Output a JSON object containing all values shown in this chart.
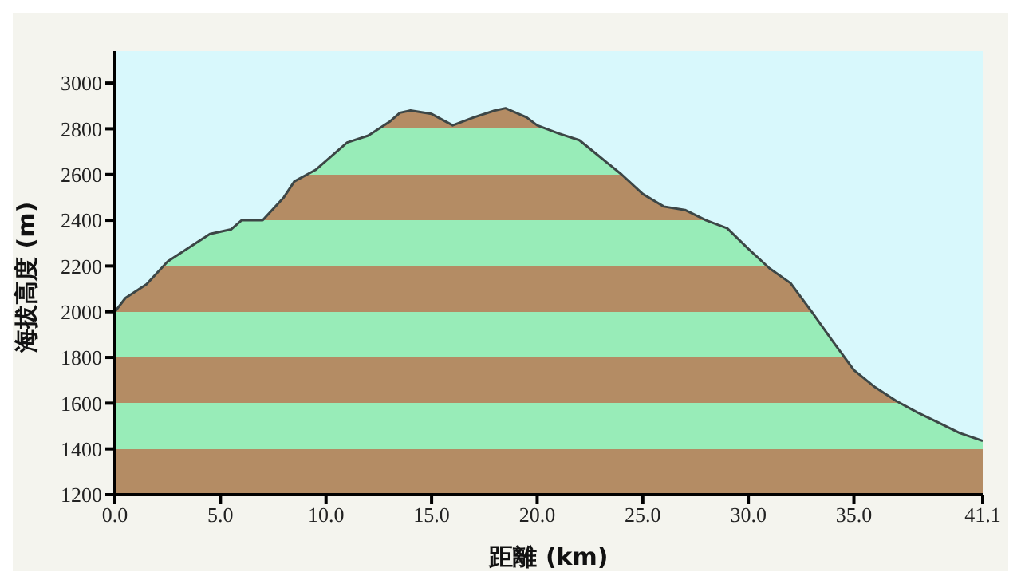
{
  "chart_data": {
    "type": "area",
    "xlabel": "距離 (km)",
    "ylabel": "海拔高度 (m)",
    "x": [
      0,
      0.5,
      1.5,
      2.5,
      3.5,
      4.5,
      5.5,
      6,
      7,
      8,
      8.5,
      9.5,
      10.5,
      11,
      12,
      13,
      13.5,
      14,
      15,
      16,
      17,
      18,
      18.5,
      19.5,
      20,
      21,
      22,
      23,
      24,
      25,
      26,
      27,
      28,
      29,
      30,
      31,
      32,
      33,
      34,
      35,
      36,
      37,
      38,
      39,
      40,
      41.1
    ],
    "series": [
      {
        "color": "#b48c64",
        "values": [
          2000,
          2060,
          2120,
          2220,
          2280,
          2340,
          2360,
          2400,
          2400,
          2500,
          2570,
          2620,
          2700,
          2740,
          2770,
          2830,
          2870,
          2880,
          2865,
          2815,
          2850,
          2880,
          2890,
          2850,
          2815,
          2780,
          2750,
          2675,
          2600,
          2515,
          2460,
          2445,
          2400,
          2365,
          2275,
          2190,
          2125,
          2000,
          1870,
          1745,
          1670,
          1610,
          1560,
          1515,
          1470,
          1435
        ]
      }
    ],
    "xlim": [
      0,
      41.1
    ],
    "xticks": [
      {
        "value": 0,
        "label": "0.0"
      },
      {
        "value": 5,
        "label": "5.0"
      },
      {
        "value": 10,
        "label": "10.0"
      },
      {
        "value": 15,
        "label": "15.0"
      },
      {
        "value": 20,
        "label": "20.0"
      },
      {
        "value": 25,
        "label": "25.0"
      },
      {
        "value": 30,
        "label": "30.0"
      },
      {
        "value": 35,
        "label": "35.0"
      },
      {
        "value": 41.1,
        "label": "41.1"
      }
    ],
    "ylim": [
      1200,
      3140
    ],
    "yticks": [
      1200,
      1400,
      1600,
      1800,
      2000,
      2200,
      2400,
      2600,
      2800,
      3000
    ],
    "grid": false,
    "legend": false
  }
}
